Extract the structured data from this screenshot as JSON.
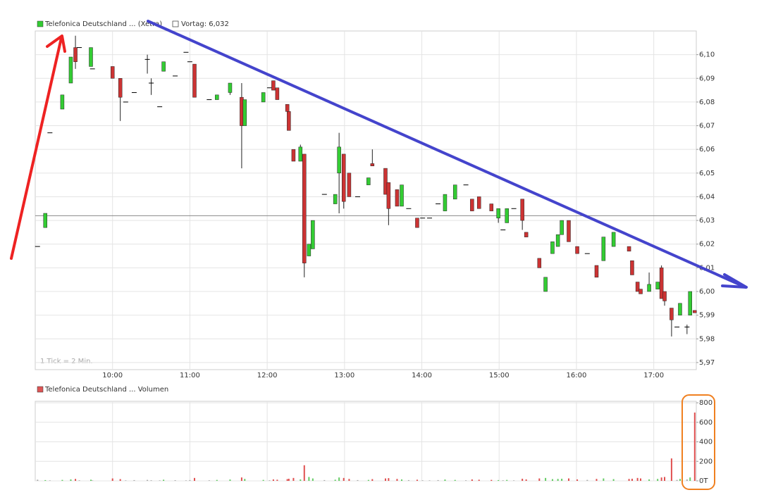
{
  "chart_data": [
    {
      "type": "candlestick",
      "note": "1 Tick = 2 Min.",
      "reference_line": {
        "value": 6.032,
        "label": "Vortag: 6,032"
      },
      "xlim": [
        9.0,
        17.55
      ],
      "xticks": [
        {
          "value": 10,
          "label": "10:00"
        },
        {
          "value": 11,
          "label": "11:00"
        },
        {
          "value": 12,
          "label": "12:00"
        },
        {
          "value": 13,
          "label": "13:00"
        },
        {
          "value": 14,
          "label": "14:00"
        },
        {
          "value": 15,
          "label": "15:00"
        },
        {
          "value": 16,
          "label": "16:00"
        },
        {
          "value": 17,
          "label": "17:00"
        }
      ],
      "ylim": [
        5.967,
        6.11
      ],
      "yticks": [
        {
          "value": 5.97,
          "label": "5,97"
        },
        {
          "value": 5.98,
          "label": "5,98"
        },
        {
          "value": 5.99,
          "label": "5,99"
        },
        {
          "value": 6.0,
          "label": "6,00"
        },
        {
          "value": 6.01,
          "label": "6,01"
        },
        {
          "value": 6.02,
          "label": "6,02"
        },
        {
          "value": 6.03,
          "label": "6,03"
        },
        {
          "value": 6.04,
          "label": "6,04"
        },
        {
          "value": 6.05,
          "label": "6,05"
        },
        {
          "value": 6.06,
          "label": "6,06"
        },
        {
          "value": 6.07,
          "label": "6,07"
        },
        {
          "value": 6.08,
          "label": "6,08"
        },
        {
          "value": 6.09,
          "label": "6,09"
        },
        {
          "value": 6.1,
          "label": "6,10"
        }
      ],
      "grid": true,
      "up_color": "#33cc33",
      "down_color": "#cc3333",
      "flat_color": "#000000",
      "series": [
        {
          "name": "Telefonica Deutschland ... (Xetra)",
          "color": "#33cc33",
          "x": [
            9.03,
            9.13,
            9.19,
            9.35,
            9.46,
            9.52,
            9.57,
            9.72,
            9.74,
            10.0,
            10.1,
            10.17,
            10.28,
            10.45,
            10.5,
            10.61,
            10.66,
            10.81,
            10.95,
            11.0,
            11.06,
            11.25,
            11.35,
            11.52,
            11.67,
            11.71,
            11.95,
            12.03,
            12.08,
            12.13,
            12.26,
            12.28,
            12.34,
            12.43,
            12.48,
            12.54,
            12.59,
            12.74,
            12.88,
            12.93,
            12.99,
            13.06,
            13.17,
            13.31,
            13.36,
            13.53,
            13.57,
            13.68,
            13.74,
            13.83,
            13.94,
            14.01,
            14.1,
            14.21,
            14.3,
            14.43,
            14.57,
            14.65,
            14.74,
            14.9,
            14.99,
            15.05,
            15.1,
            15.19,
            15.3,
            15.35,
            15.52,
            15.6,
            15.69,
            15.76,
            15.81,
            15.9,
            16.01,
            16.14,
            16.26,
            16.35,
            16.48,
            16.68,
            16.72,
            16.79,
            16.83,
            16.94,
            17.05,
            17.1,
            17.14,
            17.23,
            17.3,
            17.34,
            17.43,
            17.47,
            17.53
          ],
          "open": [
            6.019,
            6.027,
            6.067,
            6.077,
            6.088,
            6.103,
            6.103,
            6.095,
            6.094,
            6.095,
            6.09,
            6.08,
            6.084,
            6.098,
            6.088,
            6.078,
            6.093,
            6.091,
            6.101,
            6.097,
            6.096,
            6.081,
            6.081,
            6.084,
            6.082,
            6.07,
            6.08,
            6.086,
            6.089,
            6.086,
            6.079,
            6.076,
            6.06,
            6.055,
            6.058,
            6.015,
            6.018,
            6.041,
            6.037,
            6.05,
            6.058,
            6.05,
            6.04,
            6.045,
            6.054,
            6.052,
            6.046,
            6.043,
            6.036,
            6.035,
            6.031,
            6.031,
            6.031,
            6.037,
            6.034,
            6.039,
            6.045,
            6.039,
            6.04,
            6.037,
            6.031,
            6.026,
            6.029,
            6.035,
            6.039,
            6.025,
            6.014,
            6.0,
            6.016,
            6.019,
            6.024,
            6.03,
            6.019,
            6.016,
            6.011,
            6.013,
            6.019,
            6.019,
            6.013,
            6.004,
            6.001,
            6.0,
            6.001,
            6.01,
            6.0,
            5.993,
            5.985,
            5.99,
            5.985,
            5.99,
            5.992
          ],
          "high": [
            6.019,
            6.033,
            6.067,
            6.083,
            6.099,
            6.108,
            6.103,
            6.103,
            6.094,
            6.095,
            6.09,
            6.08,
            6.084,
            6.1,
            6.09,
            6.078,
            6.097,
            6.091,
            6.101,
            6.097,
            6.096,
            6.081,
            6.083,
            6.088,
            6.088,
            6.081,
            6.084,
            6.086,
            6.089,
            6.086,
            6.079,
            6.076,
            6.06,
            6.062,
            6.058,
            6.02,
            6.03,
            6.041,
            6.041,
            6.067,
            6.058,
            6.05,
            6.04,
            6.048,
            6.06,
            6.052,
            6.046,
            6.043,
            6.045,
            6.035,
            6.031,
            6.031,
            6.031,
            6.037,
            6.041,
            6.045,
            6.045,
            6.039,
            6.04,
            6.037,
            6.035,
            6.026,
            6.035,
            6.035,
            6.039,
            6.025,
            6.014,
            6.006,
            6.021,
            6.024,
            6.03,
            6.03,
            6.019,
            6.016,
            6.011,
            6.023,
            6.025,
            6.019,
            6.013,
            6.004,
            6.001,
            6.008,
            6.004,
            6.011,
            6.0,
            5.993,
            5.985,
            5.995,
            5.986,
            6.0,
            5.992
          ],
          "low": [
            6.019,
            6.027,
            6.067,
            6.077,
            6.088,
            6.094,
            6.103,
            6.095,
            6.094,
            6.09,
            6.072,
            6.08,
            6.084,
            6.092,
            6.083,
            6.078,
            6.093,
            6.091,
            6.101,
            6.097,
            6.082,
            6.081,
            6.081,
            6.083,
            6.052,
            6.07,
            6.08,
            6.086,
            6.085,
            6.081,
            6.075,
            6.068,
            6.055,
            6.055,
            6.006,
            6.015,
            6.018,
            6.041,
            6.037,
            6.033,
            6.035,
            6.04,
            6.04,
            6.045,
            6.053,
            6.041,
            6.028,
            6.036,
            6.036,
            6.035,
            6.027,
            6.031,
            6.031,
            6.037,
            6.034,
            6.039,
            6.045,
            6.034,
            6.035,
            6.034,
            6.029,
            6.026,
            6.029,
            6.035,
            6.026,
            6.023,
            6.01,
            6.0,
            6.016,
            6.019,
            6.024,
            6.021,
            6.016,
            6.016,
            6.006,
            6.013,
            6.019,
            6.017,
            6.007,
            6.0,
            5.999,
            6.0,
            6.001,
            5.997,
            5.994,
            5.981,
            5.985,
            5.99,
            5.982,
            5.99,
            5.991
          ],
          "close": [
            6.019,
            6.033,
            6.067,
            6.083,
            6.099,
            6.097,
            6.103,
            6.103,
            6.094,
            6.09,
            6.082,
            6.08,
            6.084,
            6.098,
            6.088,
            6.078,
            6.097,
            6.091,
            6.101,
            6.097,
            6.082,
            6.081,
            6.083,
            6.088,
            6.07,
            6.081,
            6.084,
            6.086,
            6.085,
            6.081,
            6.076,
            6.068,
            6.055,
            6.061,
            6.012,
            6.02,
            6.03,
            6.041,
            6.041,
            6.061,
            6.038,
            6.04,
            6.04,
            6.048,
            6.053,
            6.041,
            6.035,
            6.036,
            6.045,
            6.035,
            6.027,
            6.031,
            6.031,
            6.037,
            6.041,
            6.045,
            6.045,
            6.034,
            6.035,
            6.034,
            6.035,
            6.026,
            6.035,
            6.035,
            6.03,
            6.023,
            6.01,
            6.006,
            6.021,
            6.024,
            6.03,
            6.021,
            6.016,
            6.016,
            6.006,
            6.023,
            6.025,
            6.017,
            6.007,
            6.0,
            5.999,
            6.003,
            6.004,
            5.997,
            5.996,
            5.988,
            5.985,
            5.995,
            5.985,
            6.0,
            5.991
          ]
        }
      ]
    },
    {
      "type": "bar",
      "ylim": [
        0,
        815
      ],
      "yticks": [
        {
          "value": 0,
          "label": "0T"
        },
        200,
        400,
        600,
        800
      ],
      "grid": true,
      "up_color": "#66cc66",
      "down_color": "#e05050",
      "flat_color": "#aaaaaa",
      "series": [
        {
          "name": "Telefonica Deutschland ... Volumen",
          "color": "#dd5555",
          "values": [
            12,
            8,
            5,
            10,
            15,
            20,
            6,
            12,
            5,
            25,
            18,
            5,
            8,
            10,
            6,
            5,
            12,
            7,
            5,
            8,
            30,
            6,
            10,
            14,
            35,
            20,
            10,
            6,
            15,
            12,
            18,
            22,
            30,
            15,
            160,
            40,
            25,
            8,
            12,
            35,
            30,
            20,
            8,
            10,
            18,
            25,
            28,
            20,
            15,
            8,
            12,
            6,
            5,
            8,
            14,
            10,
            6,
            15,
            12,
            10,
            8,
            6,
            10,
            5,
            22,
            15,
            25,
            30,
            18,
            20,
            22,
            25,
            15,
            10,
            20,
            25,
            18,
            20,
            22,
            30,
            25,
            15,
            20,
            35,
            40,
            230,
            10,
            20,
            15,
            35,
            700
          ]
        }
      ]
    }
  ]
}
